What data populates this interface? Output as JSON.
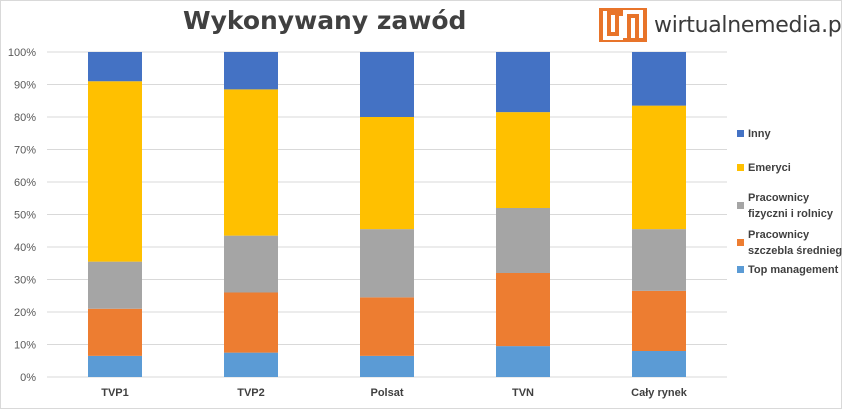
{
  "header": {
    "title": "Wykonywany zawód",
    "brand": "wirtualnemedia.pl",
    "brand_color": "#e8742a"
  },
  "chart_data": {
    "type": "bar",
    "stacked": true,
    "percent": true,
    "title": "Wykonywany zawód",
    "categories": [
      "TVP1",
      "TVP2",
      "Polsat",
      "TVN",
      "Cały rynek"
    ],
    "yticks": [
      "0%",
      "10%",
      "20%",
      "30%",
      "40%",
      "50%",
      "60%",
      "70%",
      "80%",
      "90%",
      "100%"
    ],
    "ylim": [
      0,
      100
    ],
    "grid": true,
    "legend_position": "right",
    "series": [
      {
        "name": "Top management",
        "legend": [
          "Top management"
        ],
        "color": "#5b9bd5",
        "values": [
          6.5,
          7.5,
          6.5,
          9.5,
          8
        ]
      },
      {
        "name": "Pracownicy szczebla średniego",
        "legend": [
          "Pracownicy",
          "szczebla średniego"
        ],
        "color": "#ed7d31",
        "values": [
          14.5,
          18.5,
          18,
          22.5,
          18.5
        ]
      },
      {
        "name": "Pracownicy fizyczni i rolnicy",
        "legend": [
          "Pracownicy",
          "fizyczni i rolnicy"
        ],
        "color": "#a5a5a5",
        "values": [
          14.5,
          17.5,
          21,
          20,
          19
        ]
      },
      {
        "name": "Emeryci",
        "legend": [
          "Emeryci"
        ],
        "color": "#ffc000",
        "values": [
          55.5,
          45,
          34.5,
          29.5,
          38
        ]
      },
      {
        "name": "Inny",
        "legend": [
          "Inny"
        ],
        "color": "#4472c4",
        "values": [
          9,
          11.5,
          20,
          18.5,
          16.5
        ]
      }
    ]
  }
}
